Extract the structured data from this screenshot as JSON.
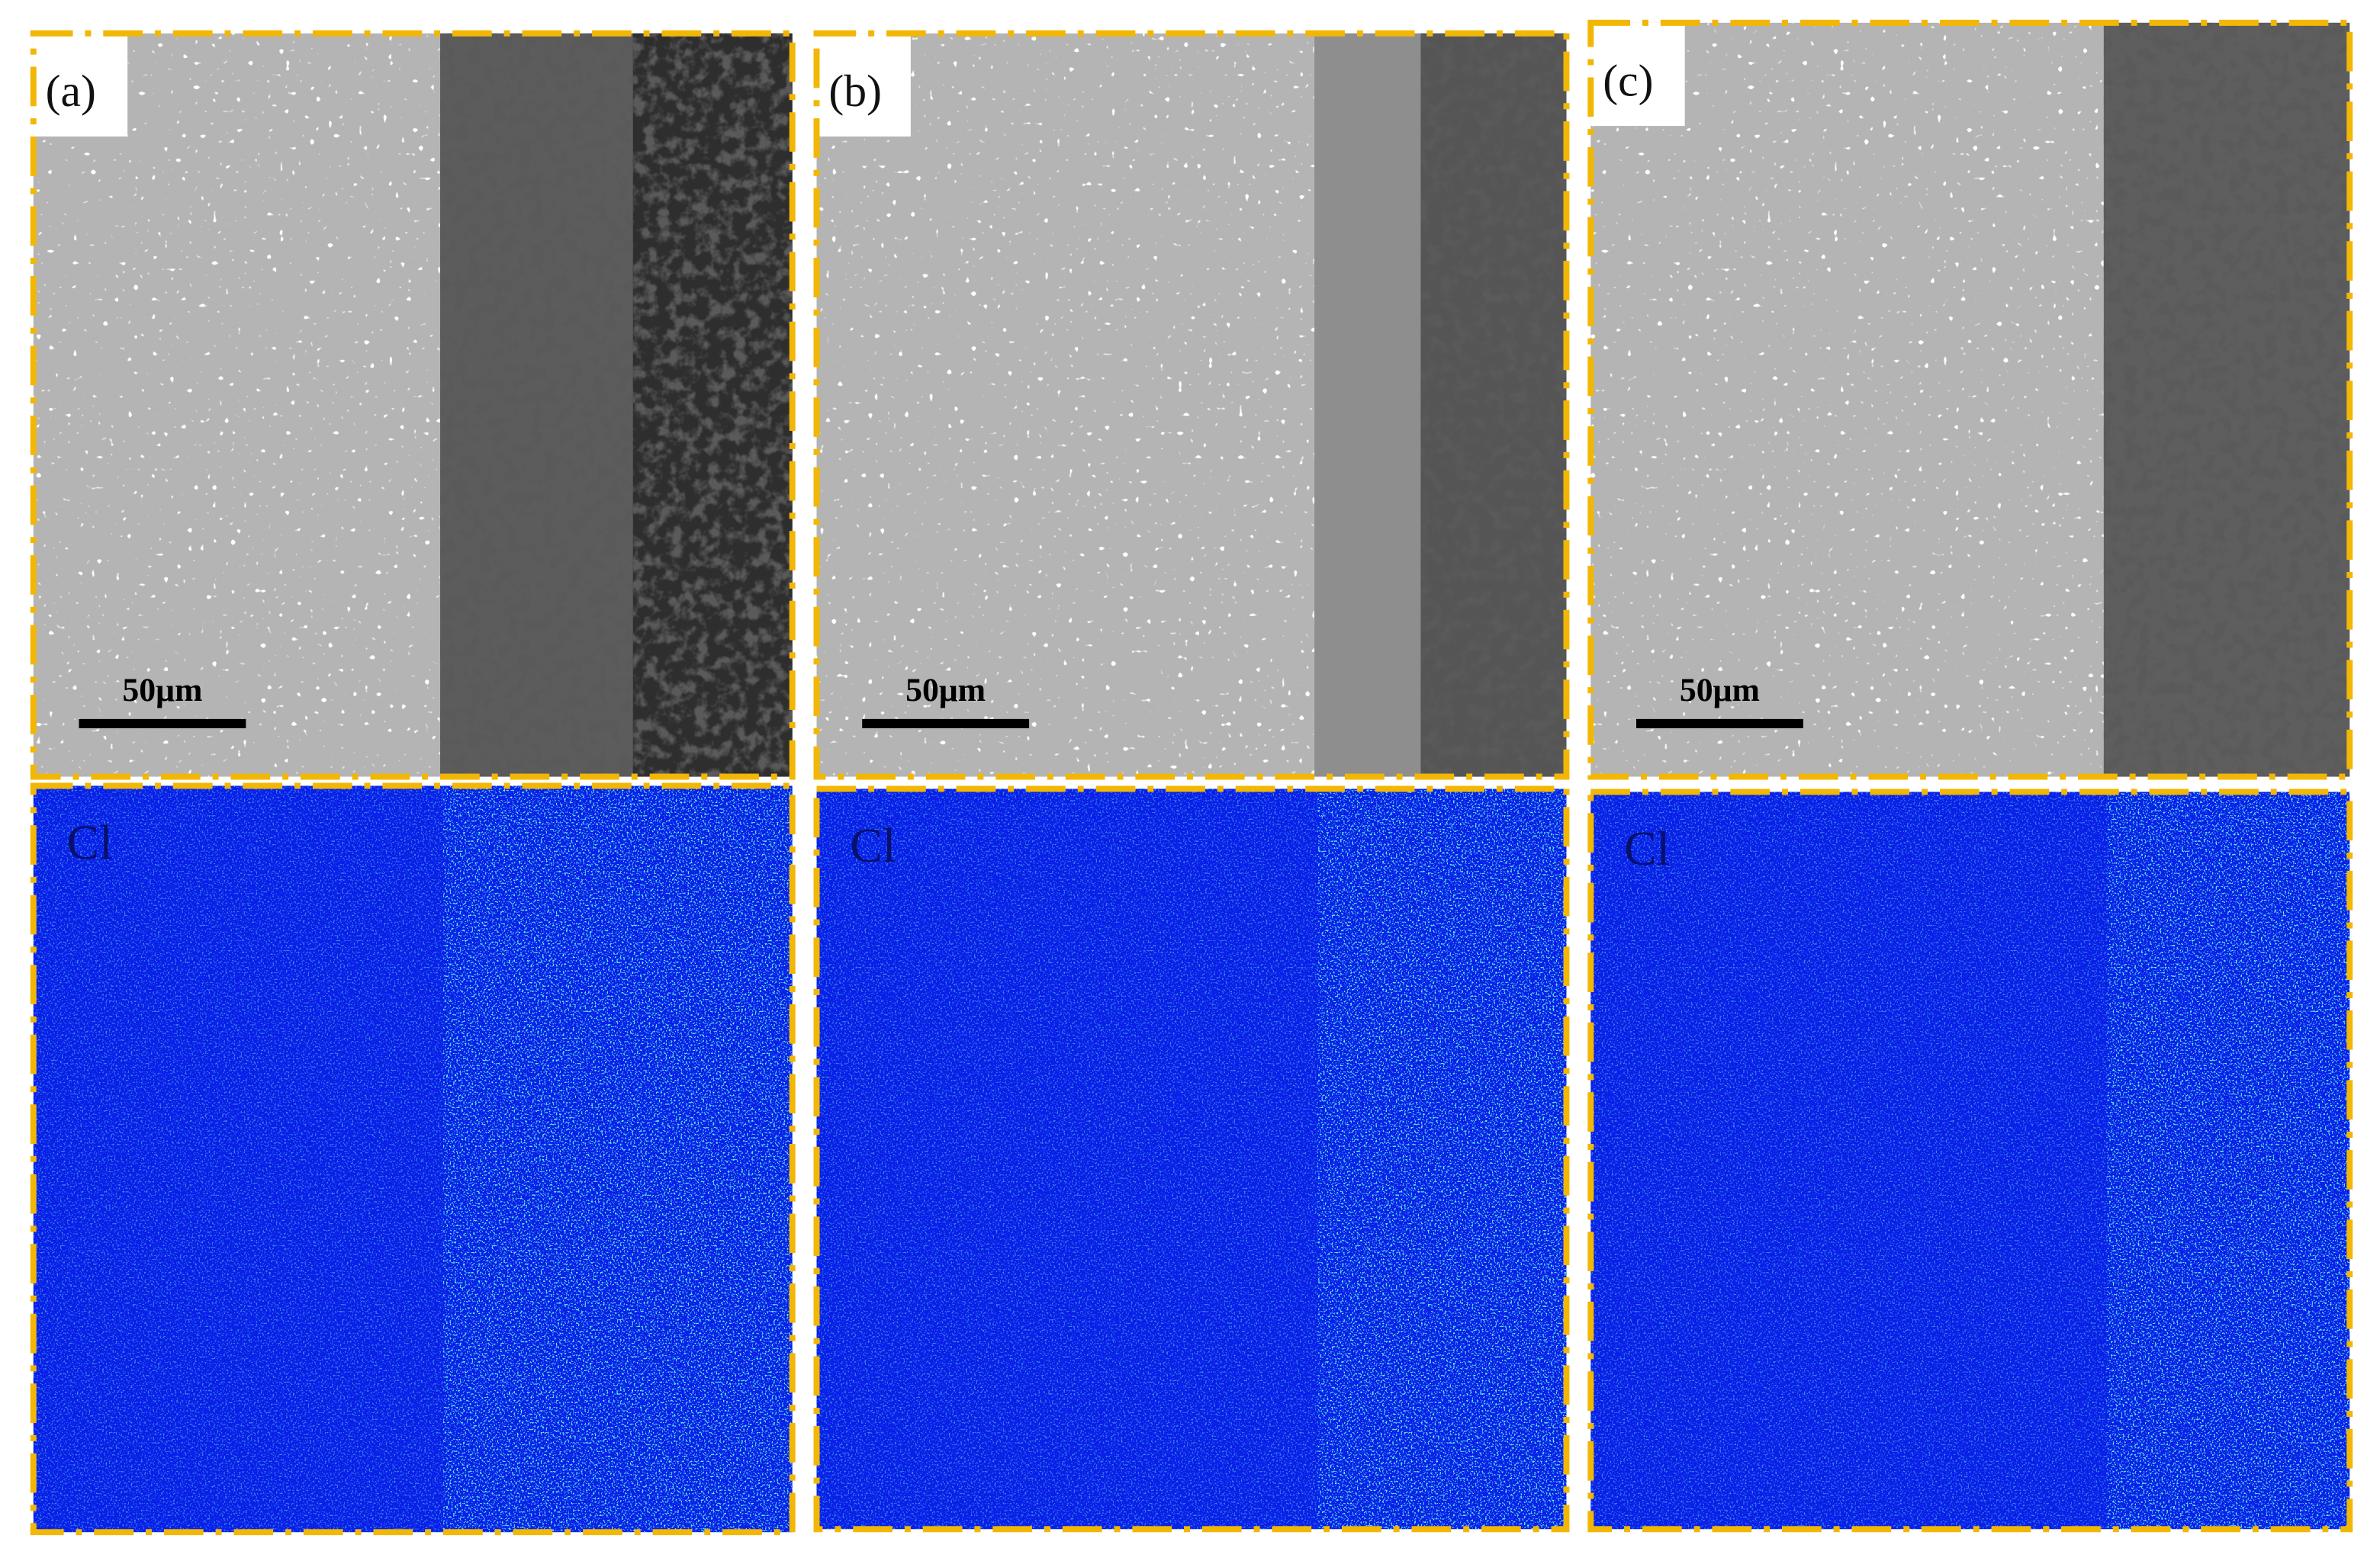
{
  "panels": [
    {
      "label": "(a)",
      "scale_bar": "50μm",
      "map_label": "Cl"
    },
    {
      "label": "(b)",
      "scale_bar": "50μm",
      "map_label": "Cl"
    },
    {
      "label": "(c)",
      "scale_bar": "50μm",
      "map_label": "Cl"
    }
  ]
}
